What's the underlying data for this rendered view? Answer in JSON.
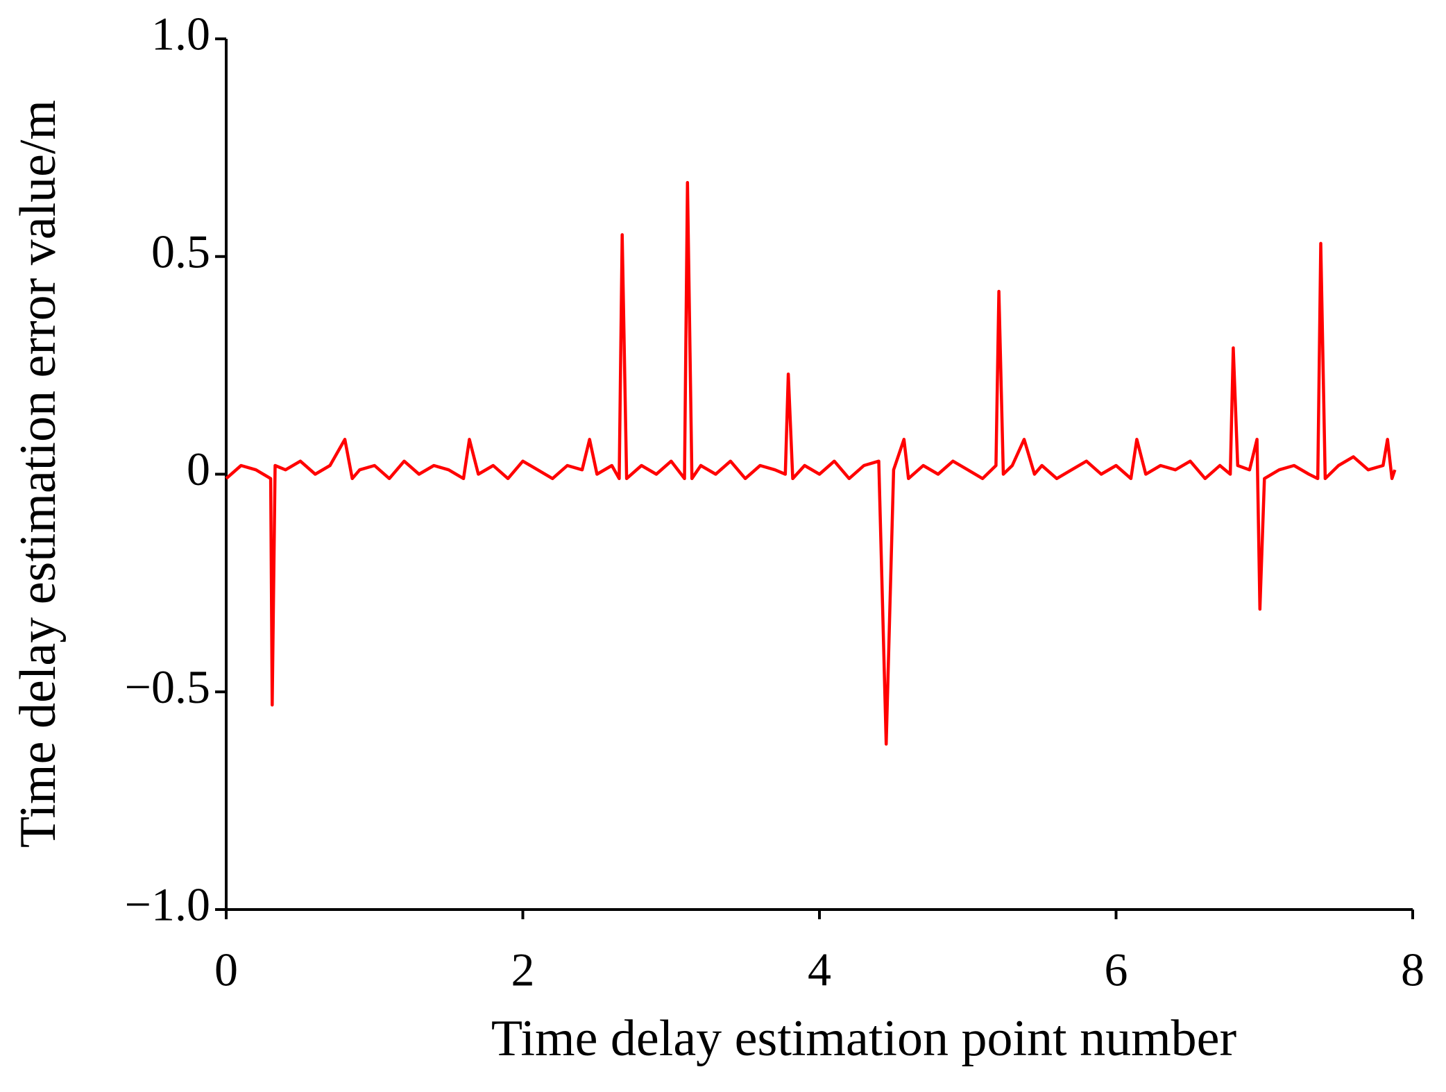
{
  "chart_data": {
    "type": "line",
    "xlabel": "Time delay estimation point number",
    "ylabel": "Time delay estimation error value/m",
    "color": "#ff0000",
    "x": [
      0,
      0.1,
      0.2,
      0.3,
      0.31,
      0.33,
      0.4,
      0.5,
      0.6,
      0.7,
      0.8,
      0.85,
      0.9,
      1.0,
      1.1,
      1.2,
      1.3,
      1.4,
      1.5,
      1.6,
      1.64,
      1.7,
      1.8,
      1.9,
      2.0,
      2.1,
      2.2,
      2.3,
      2.4,
      2.45,
      2.5,
      2.6,
      2.65,
      2.67,
      2.7,
      2.8,
      2.9,
      3.0,
      3.09,
      3.11,
      3.14,
      3.2,
      3.3,
      3.4,
      3.5,
      3.6,
      3.7,
      3.77,
      3.79,
      3.82,
      3.9,
      4.0,
      4.1,
      4.2,
      4.3,
      4.4,
      4.45,
      4.5,
      4.57,
      4.6,
      4.7,
      4.8,
      4.9,
      5.0,
      5.1,
      5.19,
      5.21,
      5.24,
      5.3,
      5.38,
      5.45,
      5.5,
      5.6,
      5.7,
      5.8,
      5.9,
      6.0,
      6.1,
      6.14,
      6.2,
      6.3,
      6.4,
      6.5,
      6.6,
      6.7,
      6.77,
      6.79,
      6.82,
      6.9,
      6.95,
      6.97,
      7.0,
      7.1,
      7.2,
      7.3,
      7.36,
      7.38,
      7.41,
      7.5,
      7.6,
      7.7,
      7.8,
      7.83,
      7.86,
      7.88
    ],
    "values": [
      -0.01,
      0.02,
      0.01,
      -0.01,
      -0.53,
      0.02,
      0.01,
      0.03,
      0.0,
      0.02,
      0.08,
      -0.01,
      0.01,
      0.02,
      -0.01,
      0.03,
      0.0,
      0.02,
      0.01,
      -0.01,
      0.08,
      0.0,
      0.02,
      -0.01,
      0.03,
      0.01,
      -0.01,
      0.02,
      0.01,
      0.08,
      0.0,
      0.02,
      -0.01,
      0.55,
      -0.01,
      0.02,
      0.0,
      0.03,
      -0.01,
      0.67,
      -0.01,
      0.02,
      0.0,
      0.03,
      -0.01,
      0.02,
      0.01,
      0.0,
      0.23,
      -0.01,
      0.02,
      0.0,
      0.03,
      -0.01,
      0.02,
      0.03,
      -0.62,
      0.01,
      0.08,
      -0.01,
      0.02,
      0.0,
      0.03,
      0.01,
      -0.01,
      0.02,
      0.42,
      0.0,
      0.02,
      0.08,
      0.0,
      0.02,
      -0.01,
      0.01,
      0.03,
      0.0,
      0.02,
      -0.01,
      0.08,
      0.0,
      0.02,
      0.01,
      0.03,
      -0.01,
      0.02,
      0.0,
      0.29,
      0.02,
      0.01,
      0.08,
      -0.31,
      -0.01,
      0.01,
      0.02,
      0.0,
      -0.01,
      0.53,
      -0.01,
      0.02,
      0.04,
      0.01,
      0.02,
      0.08,
      -0.01,
      0.01
    ],
    "xlim": [
      0,
      8
    ],
    "xticks": [
      0,
      2,
      4,
      6,
      8
    ],
    "ylim": [
      -1,
      1
    ],
    "yticks": [
      {
        "value": -1,
        "label": "−1.0"
      },
      {
        "value": -0.5,
        "label": "−0.5"
      },
      0,
      0.5,
      {
        "value": 1,
        "label": "1.0"
      }
    ]
  }
}
